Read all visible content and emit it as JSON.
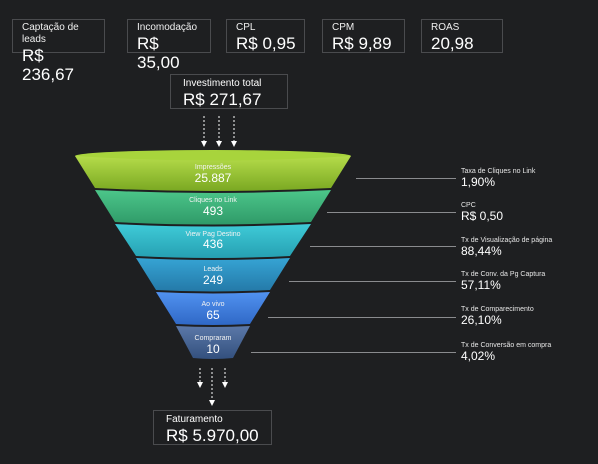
{
  "kpis": [
    {
      "label": "Captação de leads",
      "value": "R$ 236,67"
    },
    {
      "label": "Incomodação",
      "value": "R$ 35,00"
    },
    {
      "label": "CPL",
      "value": "R$ 0,95"
    },
    {
      "label": "CPM",
      "value": "R$ 9,89"
    },
    {
      "label": "ROAS",
      "value": "20,98"
    }
  ],
  "investment": {
    "label": "Investimento total",
    "value": "R$ 271,67"
  },
  "funnel": [
    {
      "label": "Impressões",
      "value": "25.887",
      "color": "#8db82b"
    },
    {
      "label": "Cliques no Link",
      "value": "493",
      "color": "#3fb07a"
    },
    {
      "label": "View Pag Destino",
      "value": "436",
      "color": "#2fb4c4"
    },
    {
      "label": "Leads",
      "value": "249",
      "color": "#2a8fbf"
    },
    {
      "label": "Ao vivo",
      "value": "65",
      "color": "#3f7ee0"
    },
    {
      "label": "Compraram",
      "value": "10",
      "color": "#3f5e8f"
    }
  ],
  "metrics": [
    {
      "label": "Taxa de Cliques no Link",
      "value": "1,90%"
    },
    {
      "label": "CPC",
      "value": "R$ 0,50"
    },
    {
      "label": "Tx de Visualização de página",
      "value": "88,44%"
    },
    {
      "label": "Tx de Conv. da Pg Captura",
      "value": "57,11%"
    },
    {
      "label": "Tx de Comparecimento",
      "value": "26,10%"
    },
    {
      "label": "Tx de Conversão em compra",
      "value": "4,02%"
    }
  ],
  "revenue": {
    "label": "Faturamento",
    "value": "R$ 5.970,00"
  }
}
